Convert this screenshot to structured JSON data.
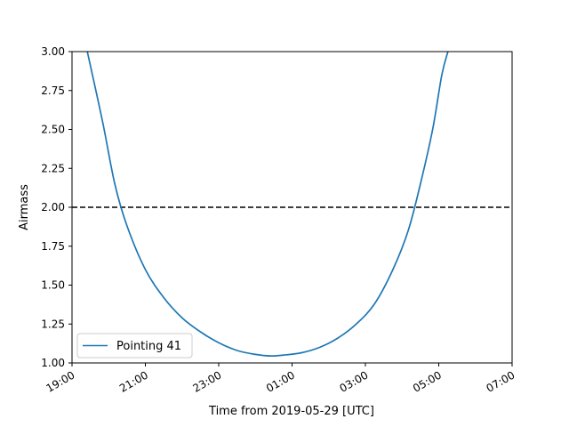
{
  "chart_data": {
    "type": "line",
    "xlabel": "Time from 2019-05-29 [UTC]",
    "ylabel": "Airmass",
    "xlim": [
      "19:00",
      "07:00"
    ],
    "ylim": [
      1.0,
      3.0
    ],
    "x_ticks": [
      "19:00",
      "21:00",
      "23:00",
      "01:00",
      "03:00",
      "05:00",
      "07:00"
    ],
    "y_ticks": [
      "1.00",
      "1.25",
      "1.50",
      "1.75",
      "2.00",
      "2.25",
      "2.50",
      "2.75",
      "3.00"
    ],
    "grid": false,
    "legend_position": "lower-left",
    "series": [
      {
        "name": "Pointing 41",
        "color": "#1f77b4",
        "x": [
          "19:25",
          "19:50",
          "20:10",
          "20:30",
          "21:00",
          "21:30",
          "22:00",
          "22:30",
          "23:00",
          "23:30",
          "00:00",
          "00:25",
          "00:45",
          "01:15",
          "01:45",
          "02:15",
          "02:45",
          "03:15",
          "03:45",
          "04:10",
          "04:30",
          "04:50",
          "05:05",
          "05:15"
        ],
        "y": [
          3.0,
          2.55,
          2.15,
          1.88,
          1.6,
          1.42,
          1.29,
          1.2,
          1.13,
          1.08,
          1.055,
          1.045,
          1.05,
          1.065,
          1.1,
          1.16,
          1.25,
          1.38,
          1.6,
          1.85,
          2.15,
          2.5,
          2.85,
          3.0
        ]
      }
    ],
    "reference_line": {
      "y": 2.0,
      "style": "dashed",
      "color": "#000000"
    }
  }
}
